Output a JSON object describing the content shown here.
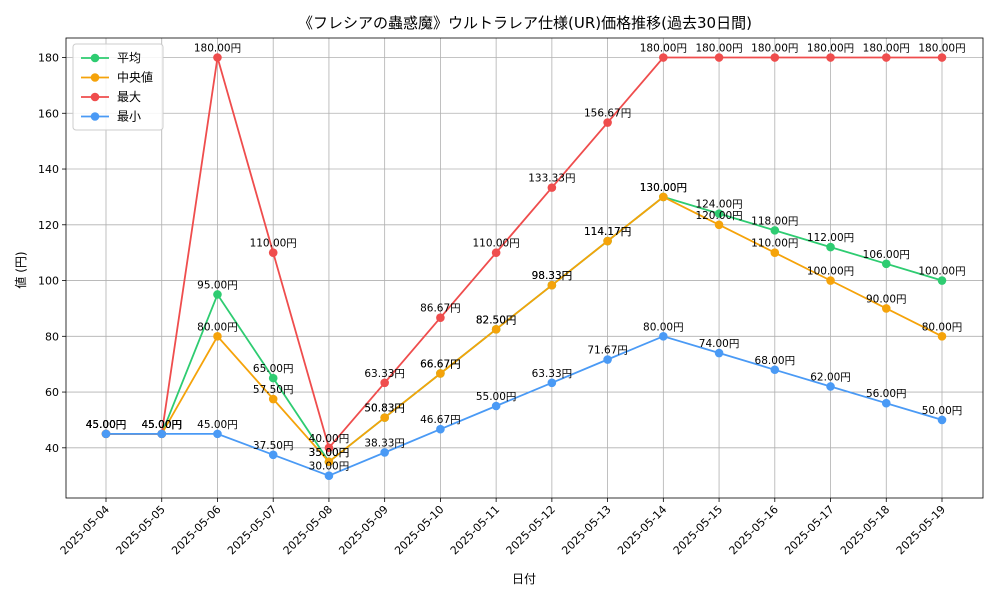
{
  "chart_data": {
    "type": "line",
    "title": "《フレシアの蟲惑魔》ウルトラレア仕様(UR)価格推移(過去30日間)",
    "xlabel": "日付",
    "ylabel": "値 (円)",
    "ylim": [
      22,
      187
    ],
    "yticks": [
      40,
      60,
      80,
      100,
      120,
      140,
      160,
      180
    ],
    "grid": true,
    "legend_position": "top-left",
    "value_suffix": "円",
    "categories": [
      "2025-05-04",
      "2025-05-05",
      "2025-05-06",
      "2025-05-07",
      "2025-05-08",
      "2025-05-09",
      "2025-05-10",
      "2025-05-11",
      "2025-05-12",
      "2025-05-13",
      "2025-05-14",
      "2025-05-15",
      "2025-05-16",
      "2025-05-17",
      "2025-05-18",
      "2025-05-19"
    ],
    "series": [
      {
        "name": "平均",
        "color": "#2ecc71",
        "values": [
          45.0,
          45.0,
          95.0,
          65.0,
          35.0,
          50.83,
          66.67,
          82.5,
          98.33,
          114.17,
          130.0,
          124.0,
          118.0,
          112.0,
          106.0,
          100.0
        ]
      },
      {
        "name": "中央値",
        "color": "#f5a30a",
        "values": [
          45.0,
          45.0,
          80.0,
          57.5,
          35.0,
          50.83,
          66.67,
          82.5,
          98.33,
          114.17,
          130.0,
          120.0,
          110.0,
          100.0,
          90.0,
          80.0
        ]
      },
      {
        "name": "最大",
        "color": "#ef4d4d",
        "values": [
          45.0,
          45.0,
          180.0,
          110.0,
          40.0,
          63.33,
          86.67,
          110.0,
          133.33,
          156.67,
          180.0,
          180.0,
          180.0,
          180.0,
          180.0,
          180.0
        ]
      },
      {
        "name": "最小",
        "color": "#4a9af5",
        "values": [
          45.0,
          45.0,
          45.0,
          37.5,
          30.0,
          38.33,
          46.67,
          55.0,
          63.33,
          71.67,
          80.0,
          74.0,
          68.0,
          62.0,
          56.0,
          50.0
        ]
      }
    ]
  }
}
